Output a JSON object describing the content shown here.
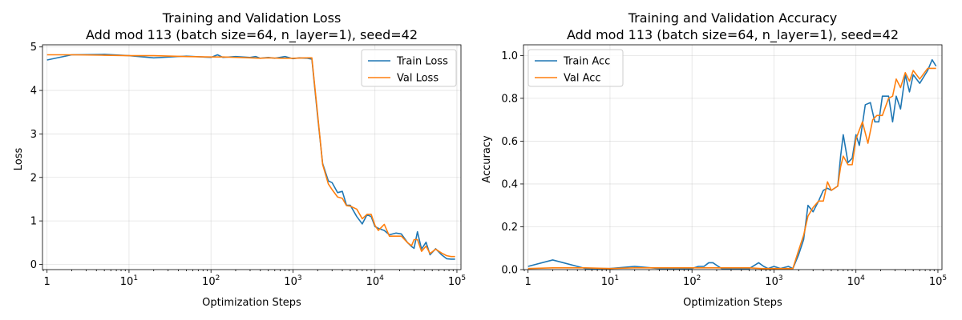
{
  "chart_data": [
    {
      "type": "line",
      "title": "Training and Validation Loss",
      "subtitle": "Add mod 113 (batch size=64, n_layer=1), seed=42",
      "xlabel": "Optimization Steps",
      "ylabel": "Loss",
      "xscale": "log",
      "xlim": [
        0.88,
        112000
      ],
      "ylim": [
        -0.12,
        5.05
      ],
      "x_ticks": [
        1,
        10,
        100,
        1000,
        10000,
        100000
      ],
      "x_tick_labels": [
        "1",
        "10",
        "100",
        "1000",
        "10000",
        "100000"
      ],
      "y_ticks": [
        0,
        1,
        2,
        3,
        4,
        5
      ],
      "y_tick_labels": [
        "0",
        "1",
        "2",
        "3",
        "4",
        "5"
      ],
      "grid": true,
      "legend_position": "top-right",
      "series": [
        {
          "name": "Train Loss",
          "color": "#1f77b4",
          "points": [
            [
              1,
              4.7
            ],
            [
              2,
              4.82
            ],
            [
              5,
              4.83
            ],
            [
              10,
              4.8
            ],
            [
              20,
              4.75
            ],
            [
              50,
              4.79
            ],
            [
              100,
              4.76
            ],
            [
              120,
              4.82
            ],
            [
              140,
              4.76
            ],
            [
              200,
              4.78
            ],
            [
              300,
              4.76
            ],
            [
              350,
              4.78
            ],
            [
              400,
              4.74
            ],
            [
              500,
              4.76
            ],
            [
              600,
              4.74
            ],
            [
              800,
              4.78
            ],
            [
              1000,
              4.73
            ],
            [
              1200,
              4.75
            ],
            [
              1500,
              4.74
            ],
            [
              1700,
              4.72
            ],
            [
              2000,
              3.4
            ],
            [
              2300,
              2.32
            ],
            [
              2700,
              1.92
            ],
            [
              3000,
              1.88
            ],
            [
              3500,
              1.65
            ],
            [
              4000,
              1.68
            ],
            [
              4500,
              1.36
            ],
            [
              5000,
              1.36
            ],
            [
              6000,
              1.1
            ],
            [
              7000,
              0.93
            ],
            [
              8000,
              1.14
            ],
            [
              9000,
              1.1
            ],
            [
              10000,
              0.87
            ],
            [
              11000,
              0.83
            ],
            [
              13000,
              0.78
            ],
            [
              15000,
              0.68
            ],
            [
              18000,
              0.72
            ],
            [
              21000,
              0.7
            ],
            [
              25000,
              0.5
            ],
            [
              28000,
              0.41
            ],
            [
              30000,
              0.37
            ],
            [
              33000,
              0.75
            ],
            [
              37000,
              0.35
            ],
            [
              42000,
              0.51
            ],
            [
              47000,
              0.22
            ],
            [
              55000,
              0.36
            ],
            [
              65000,
              0.22
            ],
            [
              75000,
              0.13
            ],
            [
              85000,
              0.12
            ],
            [
              95000,
              0.12
            ]
          ]
        },
        {
          "name": "Val Loss",
          "color": "#ff7f0e",
          "points": [
            [
              1,
              4.82
            ],
            [
              2,
              4.82
            ],
            [
              5,
              4.81
            ],
            [
              10,
              4.8
            ],
            [
              20,
              4.8
            ],
            [
              50,
              4.78
            ],
            [
              100,
              4.77
            ],
            [
              140,
              4.77
            ],
            [
              200,
              4.76
            ],
            [
              300,
              4.75
            ],
            [
              400,
              4.74
            ],
            [
              500,
              4.75
            ],
            [
              700,
              4.74
            ],
            [
              1000,
              4.74
            ],
            [
              1500,
              4.75
            ],
            [
              1700,
              4.75
            ],
            [
              2000,
              3.45
            ],
            [
              2300,
              2.3
            ],
            [
              2700,
              1.85
            ],
            [
              3000,
              1.72
            ],
            [
              3500,
              1.55
            ],
            [
              4000,
              1.52
            ],
            [
              4500,
              1.35
            ],
            [
              5000,
              1.34
            ],
            [
              6000,
              1.27
            ],
            [
              7000,
              1.05
            ],
            [
              8000,
              1.15
            ],
            [
              9000,
              1.15
            ],
            [
              10000,
              0.9
            ],
            [
              11000,
              0.78
            ],
            [
              13000,
              0.92
            ],
            [
              15000,
              0.65
            ],
            [
              18000,
              0.65
            ],
            [
              21000,
              0.65
            ],
            [
              25000,
              0.5
            ],
            [
              28000,
              0.43
            ],
            [
              30000,
              0.57
            ],
            [
              33000,
              0.57
            ],
            [
              37000,
              0.3
            ],
            [
              42000,
              0.42
            ],
            [
              47000,
              0.25
            ],
            [
              55000,
              0.35
            ],
            [
              65000,
              0.26
            ],
            [
              75000,
              0.2
            ],
            [
              85000,
              0.18
            ],
            [
              95000,
              0.18
            ]
          ]
        }
      ]
    },
    {
      "type": "line",
      "title": "Training and Validation Accuracy",
      "subtitle": "Add mod 113 (batch size=64, n_layer=1), seed=42",
      "xlabel": "Optimization Steps",
      "ylabel": "Accuracy",
      "xscale": "log",
      "xlim": [
        0.88,
        112000
      ],
      "ylim": [
        0,
        1.05
      ],
      "x_ticks": [
        1,
        10,
        100,
        1000,
        10000,
        100000
      ],
      "x_tick_labels": [
        "1",
        "10",
        "100",
        "1000",
        "10000",
        "100000"
      ],
      "y_ticks": [
        0,
        0.2,
        0.4,
        0.6,
        0.8,
        1.0
      ],
      "y_tick_labels": [
        "0.0",
        "0.2",
        "0.4",
        "0.6",
        "0.8",
        "1.0"
      ],
      "grid": true,
      "legend_position": "top-left",
      "series": [
        {
          "name": "Train Acc",
          "color": "#1f77b4",
          "points": [
            [
              1,
              0.015
            ],
            [
              2,
              0.045
            ],
            [
              5,
              0.005
            ],
            [
              10,
              0.005
            ],
            [
              20,
              0.015
            ],
            [
              40,
              0.005
            ],
            [
              100,
              0.005
            ],
            [
              120,
              0.015
            ],
            [
              140,
              0.015
            ],
            [
              160,
              0.032
            ],
            [
              180,
              0.032
            ],
            [
              200,
              0.02
            ],
            [
              230,
              0.005
            ],
            [
              300,
              0.005
            ],
            [
              500,
              0.005
            ],
            [
              650,
              0.032
            ],
            [
              750,
              0.015
            ],
            [
              850,
              0.005
            ],
            [
              1000,
              0.015
            ],
            [
              1200,
              0.005
            ],
            [
              1500,
              0.015
            ],
            [
              1700,
              0.005
            ],
            [
              2000,
              0.07
            ],
            [
              2300,
              0.14
            ],
            [
              2600,
              0.3
            ],
            [
              3000,
              0.27
            ],
            [
              3500,
              0.32
            ],
            [
              4000,
              0.37
            ],
            [
              4500,
              0.38
            ],
            [
              5000,
              0.37
            ],
            [
              6000,
              0.39
            ],
            [
              6500,
              0.53
            ],
            [
              7000,
              0.63
            ],
            [
              8000,
              0.5
            ],
            [
              9000,
              0.52
            ],
            [
              10000,
              0.63
            ],
            [
              11000,
              0.58
            ],
            [
              13000,
              0.77
            ],
            [
              15000,
              0.78
            ],
            [
              17000,
              0.69
            ],
            [
              19000,
              0.69
            ],
            [
              21000,
              0.81
            ],
            [
              25000,
              0.81
            ],
            [
              28000,
              0.69
            ],
            [
              31000,
              0.81
            ],
            [
              35000,
              0.75
            ],
            [
              40000,
              0.91
            ],
            [
              45000,
              0.83
            ],
            [
              50000,
              0.91
            ],
            [
              60000,
              0.87
            ],
            [
              75000,
              0.93
            ],
            [
              85000,
              0.98
            ],
            [
              95000,
              0.95
            ]
          ]
        },
        {
          "name": "Val Acc",
          "color": "#ff7f0e",
          "points": [
            [
              1,
              0.005
            ],
            [
              2,
              0.008
            ],
            [
              5,
              0.008
            ],
            [
              10,
              0.005
            ],
            [
              20,
              0.008
            ],
            [
              50,
              0.008
            ],
            [
              100,
              0.008
            ],
            [
              200,
              0.008
            ],
            [
              500,
              0.008
            ],
            [
              700,
              0.005
            ],
            [
              1000,
              0.005
            ],
            [
              1500,
              0.005
            ],
            [
              1700,
              0.005
            ],
            [
              2000,
              0.09
            ],
            [
              2300,
              0.16
            ],
            [
              2600,
              0.25
            ],
            [
              3000,
              0.29
            ],
            [
              3500,
              0.32
            ],
            [
              4000,
              0.32
            ],
            [
              4500,
              0.41
            ],
            [
              5000,
              0.37
            ],
            [
              6000,
              0.39
            ],
            [
              6500,
              0.48
            ],
            [
              7000,
              0.53
            ],
            [
              8000,
              0.49
            ],
            [
              9000,
              0.49
            ],
            [
              10000,
              0.61
            ],
            [
              12000,
              0.69
            ],
            [
              14000,
              0.59
            ],
            [
              16000,
              0.7
            ],
            [
              18000,
              0.72
            ],
            [
              21000,
              0.72
            ],
            [
              25000,
              0.8
            ],
            [
              28000,
              0.81
            ],
            [
              31000,
              0.89
            ],
            [
              35000,
              0.85
            ],
            [
              40000,
              0.92
            ],
            [
              45000,
              0.88
            ],
            [
              50000,
              0.93
            ],
            [
              60000,
              0.89
            ],
            [
              75000,
              0.94
            ],
            [
              85000,
              0.94
            ],
            [
              95000,
              0.94
            ]
          ]
        }
      ]
    }
  ]
}
